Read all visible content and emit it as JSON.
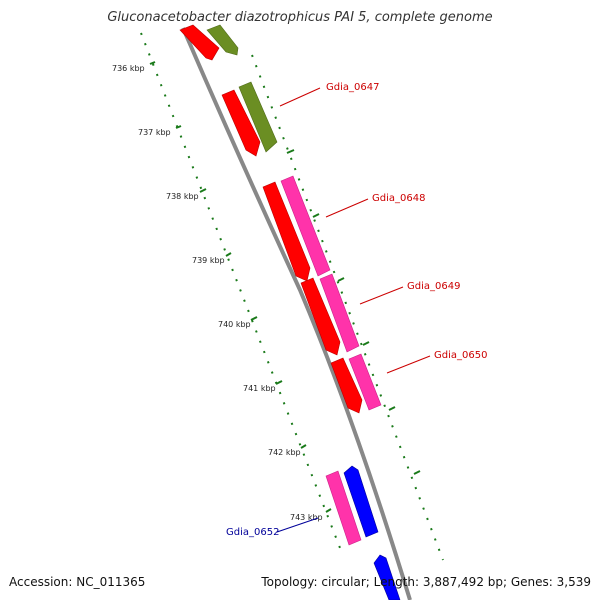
{
  "title": "Gluconacetobacter diazotrophicus PAI 5, complete genome",
  "accession": "Accession: NC_011365",
  "summary": "Topology: circular; Length: 3,887,492 bp; Genes: 3,539",
  "ticks": [
    "736 kbp",
    "737 kbp",
    "738 kbp",
    "739 kbp",
    "740 kbp",
    "741 kbp",
    "742 kbp",
    "743 kbp"
  ],
  "gene_labels": [
    {
      "text": "Gdia_0647",
      "color": "#cc0000"
    },
    {
      "text": "Gdia_0648",
      "color": "#cc0000"
    },
    {
      "text": "Gdia_0649",
      "color": "#cc0000"
    },
    {
      "text": "Gdia_0650",
      "color": "#cc0000"
    },
    {
      "text": "Gdia_0652",
      "color": "#000099"
    }
  ],
  "colors": {
    "backbone": "#888888",
    "gene_red": "#ff0000",
    "gene_pink": "#ff33aa",
    "gene_olive": "#6b8e23",
    "gene_blue": "#0000ff",
    "tick_green": "#1a7a1a"
  }
}
